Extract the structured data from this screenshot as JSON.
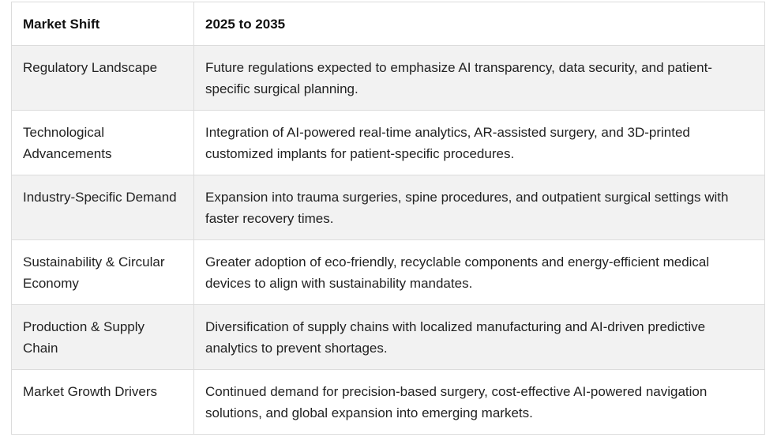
{
  "table": {
    "headers": [
      "Market Shift",
      "2025 to 2035"
    ],
    "rows": [
      [
        "Regulatory Landscape",
        "Future regulations expected to emphasize AI transparency, data security, and patient-specific surgical planning."
      ],
      [
        "Technological Advancements",
        "Integration of AI-powered real-time analytics, AR-assisted surgery, and 3D-printed customized implants for patient-specific procedures."
      ],
      [
        "Industry-Specific Demand",
        "Expansion into trauma surgeries, spine procedures, and outpatient surgical settings with faster recovery times."
      ],
      [
        "Sustainability & Circular Economy",
        "Greater adoption of eco-friendly, recyclable components and energy-efficient medical devices to align with sustainability mandates."
      ],
      [
        "Production & Supply Chain",
        "Diversification of supply chains with localized manufacturing and AI-driven predictive analytics to prevent shortages."
      ],
      [
        "Market Growth Drivers",
        "Continued demand for precision-based surgery, cost-effective AI-powered navigation solutions, and global expansion into emerging markets."
      ]
    ]
  },
  "colors": {
    "border": "#dcdcdc",
    "stripe": "#f2f2f2",
    "text": "#222222"
  }
}
